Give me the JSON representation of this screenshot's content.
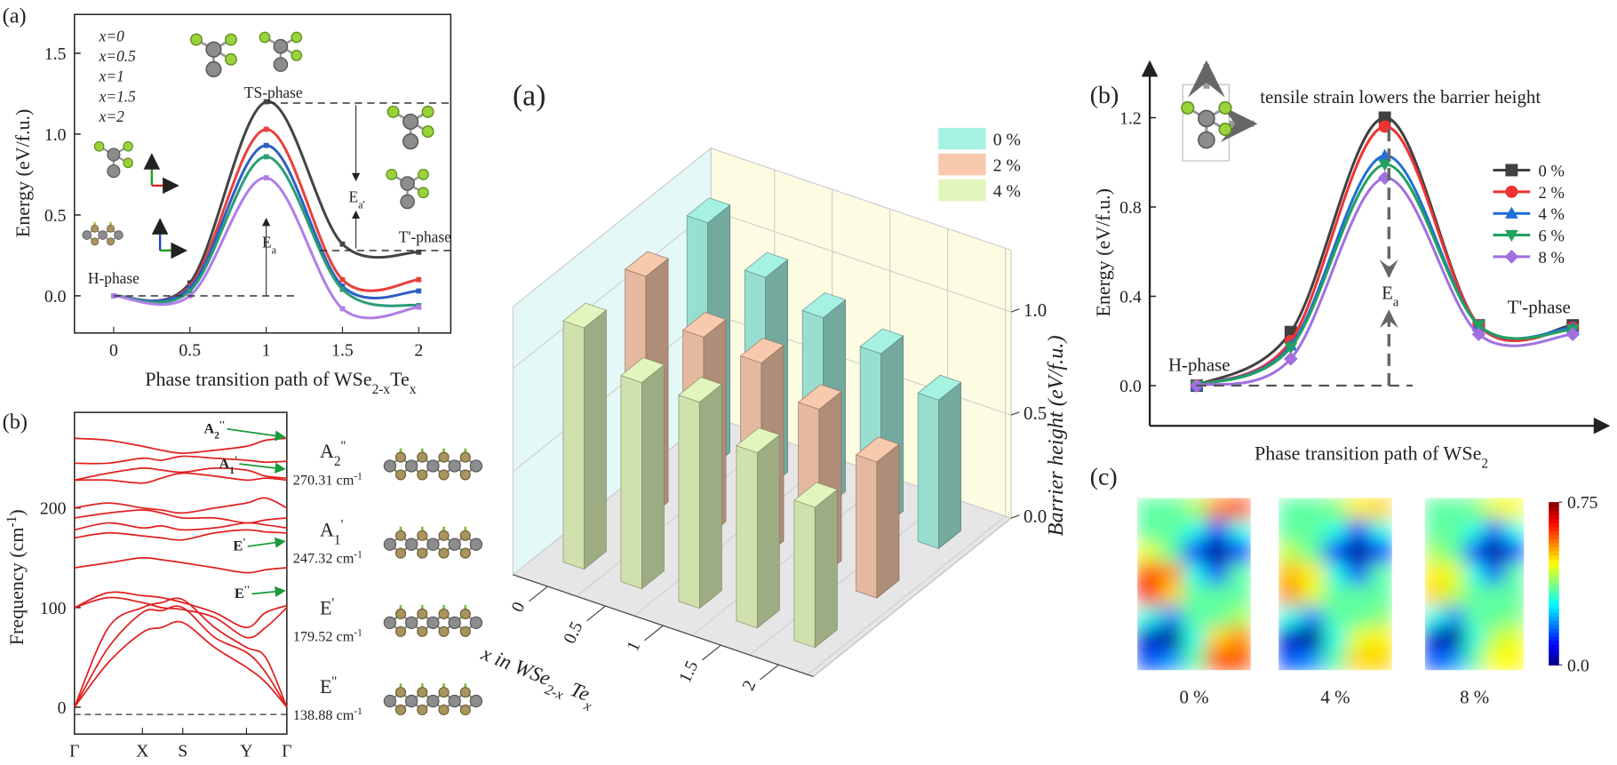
{
  "chart_data": [
    {
      "type": "line",
      "panel_label": "(a)",
      "y_label": "Energy (eV/f.u.)",
      "x_label": [
        "Phase transition path of WSe",
        "2-x",
        "Te",
        "x"
      ],
      "x": [
        0,
        0.5,
        1,
        1.5,
        2
      ],
      "xlim": [
        -0.257,
        2.21
      ],
      "ylim": [
        -0.23,
        1.74
      ],
      "xticks": [
        0,
        0.5,
        1,
        1.5,
        2
      ],
      "yticks": [
        {
          "value": 0,
          "label": "0.0"
        },
        {
          "value": 0.5,
          "label": "0.5"
        },
        {
          "value": 1,
          "label": "1.0"
        },
        {
          "value": 1.5,
          "label": "1.5"
        }
      ],
      "series": [
        {
          "name": "x=0",
          "color": "#444444",
          "values": [
            0,
            0.08,
            1.2,
            0.32,
            0.27
          ]
        },
        {
          "name": "x=0.5",
          "color": "#e8413c",
          "values": [
            0,
            0.06,
            1.03,
            0.1,
            0.1
          ]
        },
        {
          "name": "x=1",
          "color": "#2d5fc4",
          "values": [
            0,
            0.05,
            0.93,
            0.06,
            0.03
          ]
        },
        {
          "name": "x=1.5",
          "color": "#2a9d78",
          "values": [
            0,
            0.03,
            0.86,
            0.04,
            -0.06
          ]
        },
        {
          "name": "x=2",
          "color": "#b07ee8",
          "values": [
            0,
            0,
            0.73,
            -0.08,
            -0.07
          ]
        }
      ],
      "annotations": [
        "TS-phase",
        "T'-phase",
        "H-phase",
        [
          "E",
          "a'"
        ],
        [
          "E",
          "a"
        ]
      ]
    },
    {
      "type": "line",
      "panel_label": "(b)",
      "y_label": [
        "Frequency (cm",
        "-1",
        ")"
      ],
      "x": [
        0,
        0.16,
        0.32,
        0.41,
        0.51,
        0.66,
        0.81,
        0.9,
        1
      ],
      "xlim": [
        0,
        1
      ],
      "ylim": [
        -27,
        296
      ],
      "xticks": [
        {
          "value": 0,
          "label": "Γ"
        },
        {
          "value": 0.32,
          "label": "X"
        },
        {
          "value": 0.51,
          "label": "S"
        },
        {
          "value": 0.81,
          "label": "Y"
        },
        {
          "value": 1,
          "label": "Γ"
        }
      ],
      "yticks": [
        0,
        100,
        200
      ],
      "series": [
        {
          "color": "#e02020",
          "values": [
            0,
            45,
            75,
            80,
            85,
            60,
            40,
            25,
            0
          ]
        },
        {
          "color": "#e02020",
          "values": [
            0,
            60,
            95,
            97,
            100,
            70,
            55,
            35,
            0
          ]
        },
        {
          "color": "#e02020",
          "values": [
            0,
            80,
            100,
            105,
            108,
            80,
            60,
            50,
            0
          ]
        },
        {
          "color": "#e02020",
          "values": [
            100,
            110,
            105,
            100,
            98,
            90,
            70,
            80,
            100
          ]
        },
        {
          "color": "#e02020",
          "values": [
            100,
            115,
            112,
            110,
            105,
            95,
            80,
            95,
            102
          ]
        },
        {
          "color": "#e02020",
          "values": [
            140,
            145,
            150,
            148,
            145,
            140,
            135,
            138,
            140
          ]
        },
        {
          "color": "#e02020",
          "values": [
            170,
            175,
            172,
            170,
            168,
            175,
            178,
            176,
            175
          ]
        },
        {
          "color": "#e02020",
          "values": [
            178,
            185,
            180,
            182,
            178,
            180,
            185,
            183,
            180
          ]
        },
        {
          "color": "#e02020",
          "values": [
            190,
            195,
            198,
            195,
            190,
            190,
            185,
            188,
            190
          ]
        },
        {
          "color": "#e02020",
          "values": [
            200,
            205,
            200,
            198,
            195,
            200,
            205,
            210,
            200
          ]
        },
        {
          "color": "#e02020",
          "values": [
            228,
            228,
            225,
            230,
            235,
            232,
            228,
            230,
            228
          ]
        },
        {
          "color": "#e02020",
          "values": [
            228,
            235,
            240,
            238,
            236,
            240,
            238,
            232,
            230
          ]
        },
        {
          "color": "#e02020",
          "values": [
            245,
            245,
            250,
            248,
            252,
            250,
            248,
            246,
            247
          ]
        },
        {
          "color": "#e02020",
          "values": [
            270,
            268,
            262,
            258,
            255,
            258,
            262,
            268,
            270
          ]
        }
      ],
      "modes": [
        {
          "label": [
            "A",
            "2",
            "''"
          ],
          "freq": [
            "270.31 cm",
            "-1"
          ]
        },
        {
          "label": [
            "A",
            "1",
            "'"
          ],
          "freq": [
            "247.32 cm",
            "-1"
          ]
        },
        {
          "label": [
            "E",
            "'"
          ],
          "freq": [
            "179.52 cm",
            "-1"
          ]
        },
        {
          "label": [
            "E",
            "''"
          ],
          "freq": [
            "138.88 cm",
            "-1"
          ]
        }
      ],
      "arrow_labels": [
        [
          "A",
          "2",
          "''"
        ],
        [
          "A",
          "1",
          "'"
        ],
        [
          "E",
          "'"
        ],
        [
          "E",
          "''"
        ]
      ]
    },
    {
      "type": "bar3d",
      "panel_label": "(a)",
      "y_label": "Barrier height (eV/f.u.)",
      "x_label": [
        "x in WSe",
        "2-x",
        " Te",
        "x"
      ],
      "categories": [
        "0",
        "0.5",
        "1",
        "1.5",
        "2"
      ],
      "zlim": [
        0,
        1.3
      ],
      "zticks": [
        {
          "value": 0,
          "label": "0.0"
        },
        {
          "value": 0.5,
          "label": "0.5"
        },
        {
          "value": 1,
          "label": "1.0"
        }
      ],
      "series": [
        {
          "name": "0 %",
          "color": "#a6f2e2",
          "values": [
            1.2,
            1.03,
            0.93,
            0.85,
            0.72
          ]
        },
        {
          "name": "2 %",
          "color": "#f8c9ad",
          "values": [
            1.18,
            0.98,
            0.95,
            0.82,
            0.66
          ]
        },
        {
          "name": "4 %",
          "color": "#e2f5bc",
          "values": [
            1.17,
            1.0,
            1.0,
            0.85,
            0.68
          ]
        }
      ]
    },
    {
      "type": "line",
      "panel_label": "(b)",
      "y_label": "Energy (eV/f.u.)",
      "x_label": [
        "Phase transition path of WSe",
        "2"
      ],
      "x": [
        0,
        0.5,
        1,
        1.5,
        2
      ],
      "xlim": [
        -0.25,
        2.19
      ],
      "ylim": [
        -0.18,
        1.45
      ],
      "yticks": [
        {
          "value": 0,
          "label": "0.0"
        },
        {
          "value": 0.4,
          "label": "0.4"
        },
        {
          "value": 0.8,
          "label": "0.8"
        },
        {
          "value": 1.2,
          "label": "1.2"
        }
      ],
      "series": [
        {
          "name": "0 %",
          "color": "#404040",
          "marker": "square",
          "values": [
            0,
            0.24,
            1.2,
            0.27,
            0.27
          ]
        },
        {
          "name": "2 %",
          "color": "#ee3333",
          "marker": "circle",
          "values": [
            0,
            0.2,
            1.16,
            0.27,
            0.26
          ]
        },
        {
          "name": "4 %",
          "color": "#1f6fd6",
          "marker": "triangle-up",
          "values": [
            0,
            0.18,
            1.03,
            0.27,
            0.26
          ]
        },
        {
          "name": "6 %",
          "color": "#22a060",
          "marker": "triangle-down",
          "values": [
            0,
            0.17,
            0.99,
            0.27,
            0.25
          ]
        },
        {
          "name": "8 %",
          "color": "#a070e0",
          "marker": "diamond",
          "values": [
            0,
            0.12,
            0.93,
            0.23,
            0.23
          ]
        }
      ],
      "annotations": [
        "tensile strain lowers the barrier height",
        "H-phase",
        "T'-phase",
        [
          "E",
          "a"
        ]
      ]
    },
    {
      "type": "heatmap",
      "panel_label": "(c)",
      "clim": [
        0,
        0.75
      ],
      "cticks": [
        {
          "value": 0.75,
          "label": "0.75"
        },
        {
          "value": 0,
          "label": "0.0"
        }
      ],
      "maps": [
        {
          "label": "0 %",
          "values": [
            [
              0.35,
              0.35,
              0.4,
              0.55,
              0.6
            ],
            [
              0.35,
              0.35,
              0.3,
              0.15,
              0.3
            ],
            [
              0.45,
              0.35,
              0.1,
              0,
              0.1
            ],
            [
              0.6,
              0.55,
              0.3,
              0.15,
              0.35
            ],
            [
              0.65,
              0.5,
              0.35,
              0.35,
              0.35
            ],
            [
              0.3,
              0.2,
              0.35,
              0.35,
              0.4
            ],
            [
              0.05,
              0,
              0.3,
              0.5,
              0.55
            ],
            [
              0.15,
              0.2,
              0.35,
              0.6,
              0.6
            ]
          ]
        },
        {
          "label": "4 %",
          "values": [
            [
              0.35,
              0.35,
              0.38,
              0.48,
              0.5
            ],
            [
              0.35,
              0.35,
              0.3,
              0.15,
              0.3
            ],
            [
              0.42,
              0.35,
              0.1,
              0,
              0.1
            ],
            [
              0.52,
              0.48,
              0.3,
              0.15,
              0.35
            ],
            [
              0.55,
              0.45,
              0.35,
              0.35,
              0.35
            ],
            [
              0.3,
              0.2,
              0.35,
              0.35,
              0.38
            ],
            [
              0.05,
              0,
              0.3,
              0.45,
              0.48
            ],
            [
              0.15,
              0.2,
              0.35,
              0.5,
              0.5
            ]
          ]
        },
        {
          "label": "8 %",
          "values": [
            [
              0.35,
              0.35,
              0.37,
              0.45,
              0.47
            ],
            [
              0.35,
              0.35,
              0.3,
              0.15,
              0.3
            ],
            [
              0.4,
              0.35,
              0.1,
              0,
              0.1
            ],
            [
              0.48,
              0.45,
              0.3,
              0.15,
              0.35
            ],
            [
              0.5,
              0.42,
              0.35,
              0.35,
              0.35
            ],
            [
              0.3,
              0.2,
              0.35,
              0.35,
              0.37
            ],
            [
              0.05,
              0,
              0.3,
              0.42,
              0.45
            ],
            [
              0.15,
              0.2,
              0.35,
              0.47,
              0.47
            ]
          ]
        }
      ]
    }
  ]
}
